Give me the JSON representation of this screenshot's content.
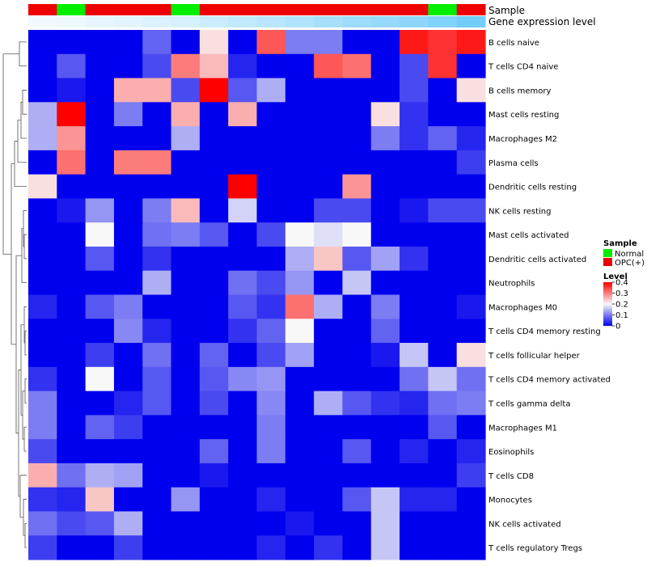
{
  "colors": {
    "normal": "#00ee00",
    "opc": "#ee0000",
    "level_low": "#0000ee",
    "level_mid": "#f8f8f8",
    "level_high": "#ff0000",
    "expr_low": "#f6fbff",
    "expr_high": "#64c8f8",
    "dendro": "#555555"
  },
  "chart_data": {
    "type": "heatmap",
    "annotation_labels": [
      "Sample",
      "Gene expression level"
    ],
    "samples": [
      "OPC(+)",
      "Normal",
      "OPC(+)",
      "OPC(+)",
      "OPC(+)",
      "Normal",
      "OPC(+)",
      "OPC(+)",
      "OPC(+)",
      "OPC(+)",
      "OPC(+)",
      "OPC(+)",
      "OPC(+)",
      "OPC(+)",
      "Normal",
      "OPC(+)",
      "Normal"
    ],
    "expression": [
      0.02,
      0.06,
      0.1,
      0.14,
      0.18,
      0.22,
      0.3,
      0.36,
      0.42,
      0.48,
      0.54,
      0.6,
      0.66,
      0.72,
      0.8,
      0.9,
      1.0
    ],
    "rows": [
      "B cells naive",
      "T cells CD4 naive",
      "B cells memory",
      "Mast cells resting",
      "Macrophages M2",
      "Plasma cells",
      "Dendritic cells resting",
      "NK cells resting",
      "Mast cells activated",
      "Dendritic cells activated",
      "Neutrophils",
      "Macrophages M0",
      "T cells CD4 memory resting",
      "T cells follicular helper",
      "T cells CD4 memory activated",
      "T cells gamma delta",
      "Macrophages M1",
      "Eosinophils",
      "T cells CD8",
      "Monocytes",
      "NK cells activated",
      "T cells regulatory  Tregs"
    ],
    "values": [
      [
        0,
        0,
        0,
        0,
        0.08,
        0,
        0.22,
        0,
        0.33,
        0.1,
        0.1,
        0,
        0,
        0.38,
        0.36,
        0.38
      ],
      [
        0,
        0.07,
        0,
        0,
        0.06,
        0.3,
        0.25,
        0.03,
        0,
        0,
        0.33,
        0.31,
        0,
        0.06,
        0.36,
        0
      ],
      [
        0,
        0.02,
        0,
        0.26,
        0.26,
        0.06,
        0.4,
        0.07,
        0.14,
        0,
        0,
        0,
        0,
        0.06,
        0,
        0.22
      ],
      [
        0.14,
        0.4,
        0,
        0.1,
        0,
        0.26,
        0,
        0.26,
        0,
        0,
        0,
        0,
        0.22,
        0.04,
        0,
        0
      ],
      [
        0.14,
        0.28,
        0,
        0,
        0,
        0.14,
        0,
        0,
        0,
        0,
        0,
        0,
        0.1,
        0.04,
        0.08,
        0.03
      ],
      [
        0,
        0.31,
        0,
        0.3,
        0.3,
        0,
        0,
        0,
        0,
        0,
        0,
        0,
        0,
        0,
        0,
        0.05
      ],
      [
        0.22,
        0,
        0,
        0,
        0,
        0,
        0,
        0.4,
        0,
        0,
        0,
        0.28,
        0,
        0,
        0,
        0
      ],
      [
        0,
        0.02,
        0.12,
        0,
        0.1,
        0.25,
        0,
        0.17,
        0,
        0,
        0.06,
        0.06,
        0,
        0.02,
        0.06,
        0.06
      ],
      [
        0,
        0,
        0.2,
        0,
        0.09,
        0.1,
        0.07,
        0,
        0.06,
        0.2,
        0.18,
        0.2,
        0,
        0,
        0,
        0
      ],
      [
        0,
        0,
        0.07,
        0,
        0.04,
        0,
        0,
        0,
        0,
        0.14,
        0.24,
        0.07,
        0.13,
        0.04,
        0,
        0
      ],
      [
        0,
        0,
        0,
        0,
        0.14,
        0,
        0,
        0.09,
        0.06,
        0.12,
        0,
        0.16,
        0,
        0,
        0,
        0
      ],
      [
        0.03,
        0,
        0.07,
        0.1,
        0,
        0,
        0,
        0.07,
        0.04,
        0.31,
        0.14,
        0,
        0.1,
        0,
        0,
        0.02
      ],
      [
        0,
        0,
        0,
        0.11,
        0.03,
        0,
        0,
        0.04,
        0.08,
        0.2,
        0,
        0,
        0.08,
        0,
        0,
        0
      ],
      [
        0,
        0,
        0.05,
        0,
        0.09,
        0,
        0.08,
        0,
        0.06,
        0.13,
        0,
        0,
        0.02,
        0.16,
        0,
        0.22
      ],
      [
        0.04,
        0,
        0.2,
        0,
        0.07,
        0,
        0.07,
        0.11,
        0.12,
        0,
        0,
        0,
        0,
        0.09,
        0.16,
        0.09
      ],
      [
        0.1,
        0,
        0,
        0.03,
        0.07,
        0,
        0.06,
        0,
        0.11,
        0,
        0.14,
        0.07,
        0.04,
        0.03,
        0.09,
        0.1
      ],
      [
        0.1,
        0,
        0.08,
        0.05,
        0,
        0,
        0,
        0,
        0.1,
        0,
        0,
        0,
        0,
        0,
        0.07,
        0
      ],
      [
        0.06,
        0,
        0,
        0,
        0,
        0,
        0.08,
        0,
        0.1,
        0,
        0,
        0.07,
        0,
        0.03,
        0,
        0.03
      ],
      [
        0.26,
        0.09,
        0.14,
        0.13,
        0,
        0,
        0.02,
        0,
        0,
        0,
        0,
        0,
        0,
        0,
        0,
        0.05
      ],
      [
        0.04,
        0.03,
        0.24,
        0,
        0,
        0.12,
        0,
        0,
        0.03,
        0,
        0,
        0.07,
        0.16,
        0.03,
        0.03,
        0
      ],
      [
        0.09,
        0.06,
        0.07,
        0.14,
        0,
        0,
        0,
        0,
        0,
        0.02,
        0,
        0,
        0.16,
        0,
        0,
        0
      ],
      [
        0.05,
        0,
        0,
        0.05,
        0,
        0,
        0,
        0,
        0.03,
        0,
        0.04,
        0,
        0.16,
        0,
        0,
        0
      ]
    ],
    "legend_sample": {
      "title": "Sample",
      "items": [
        "Normal",
        "OPC(+)"
      ]
    },
    "legend_level": {
      "title": "Level",
      "ticks": [
        0.4,
        0.3,
        0.2,
        0.1,
        0
      ]
    },
    "color_range": [
      0,
      0.4
    ]
  }
}
